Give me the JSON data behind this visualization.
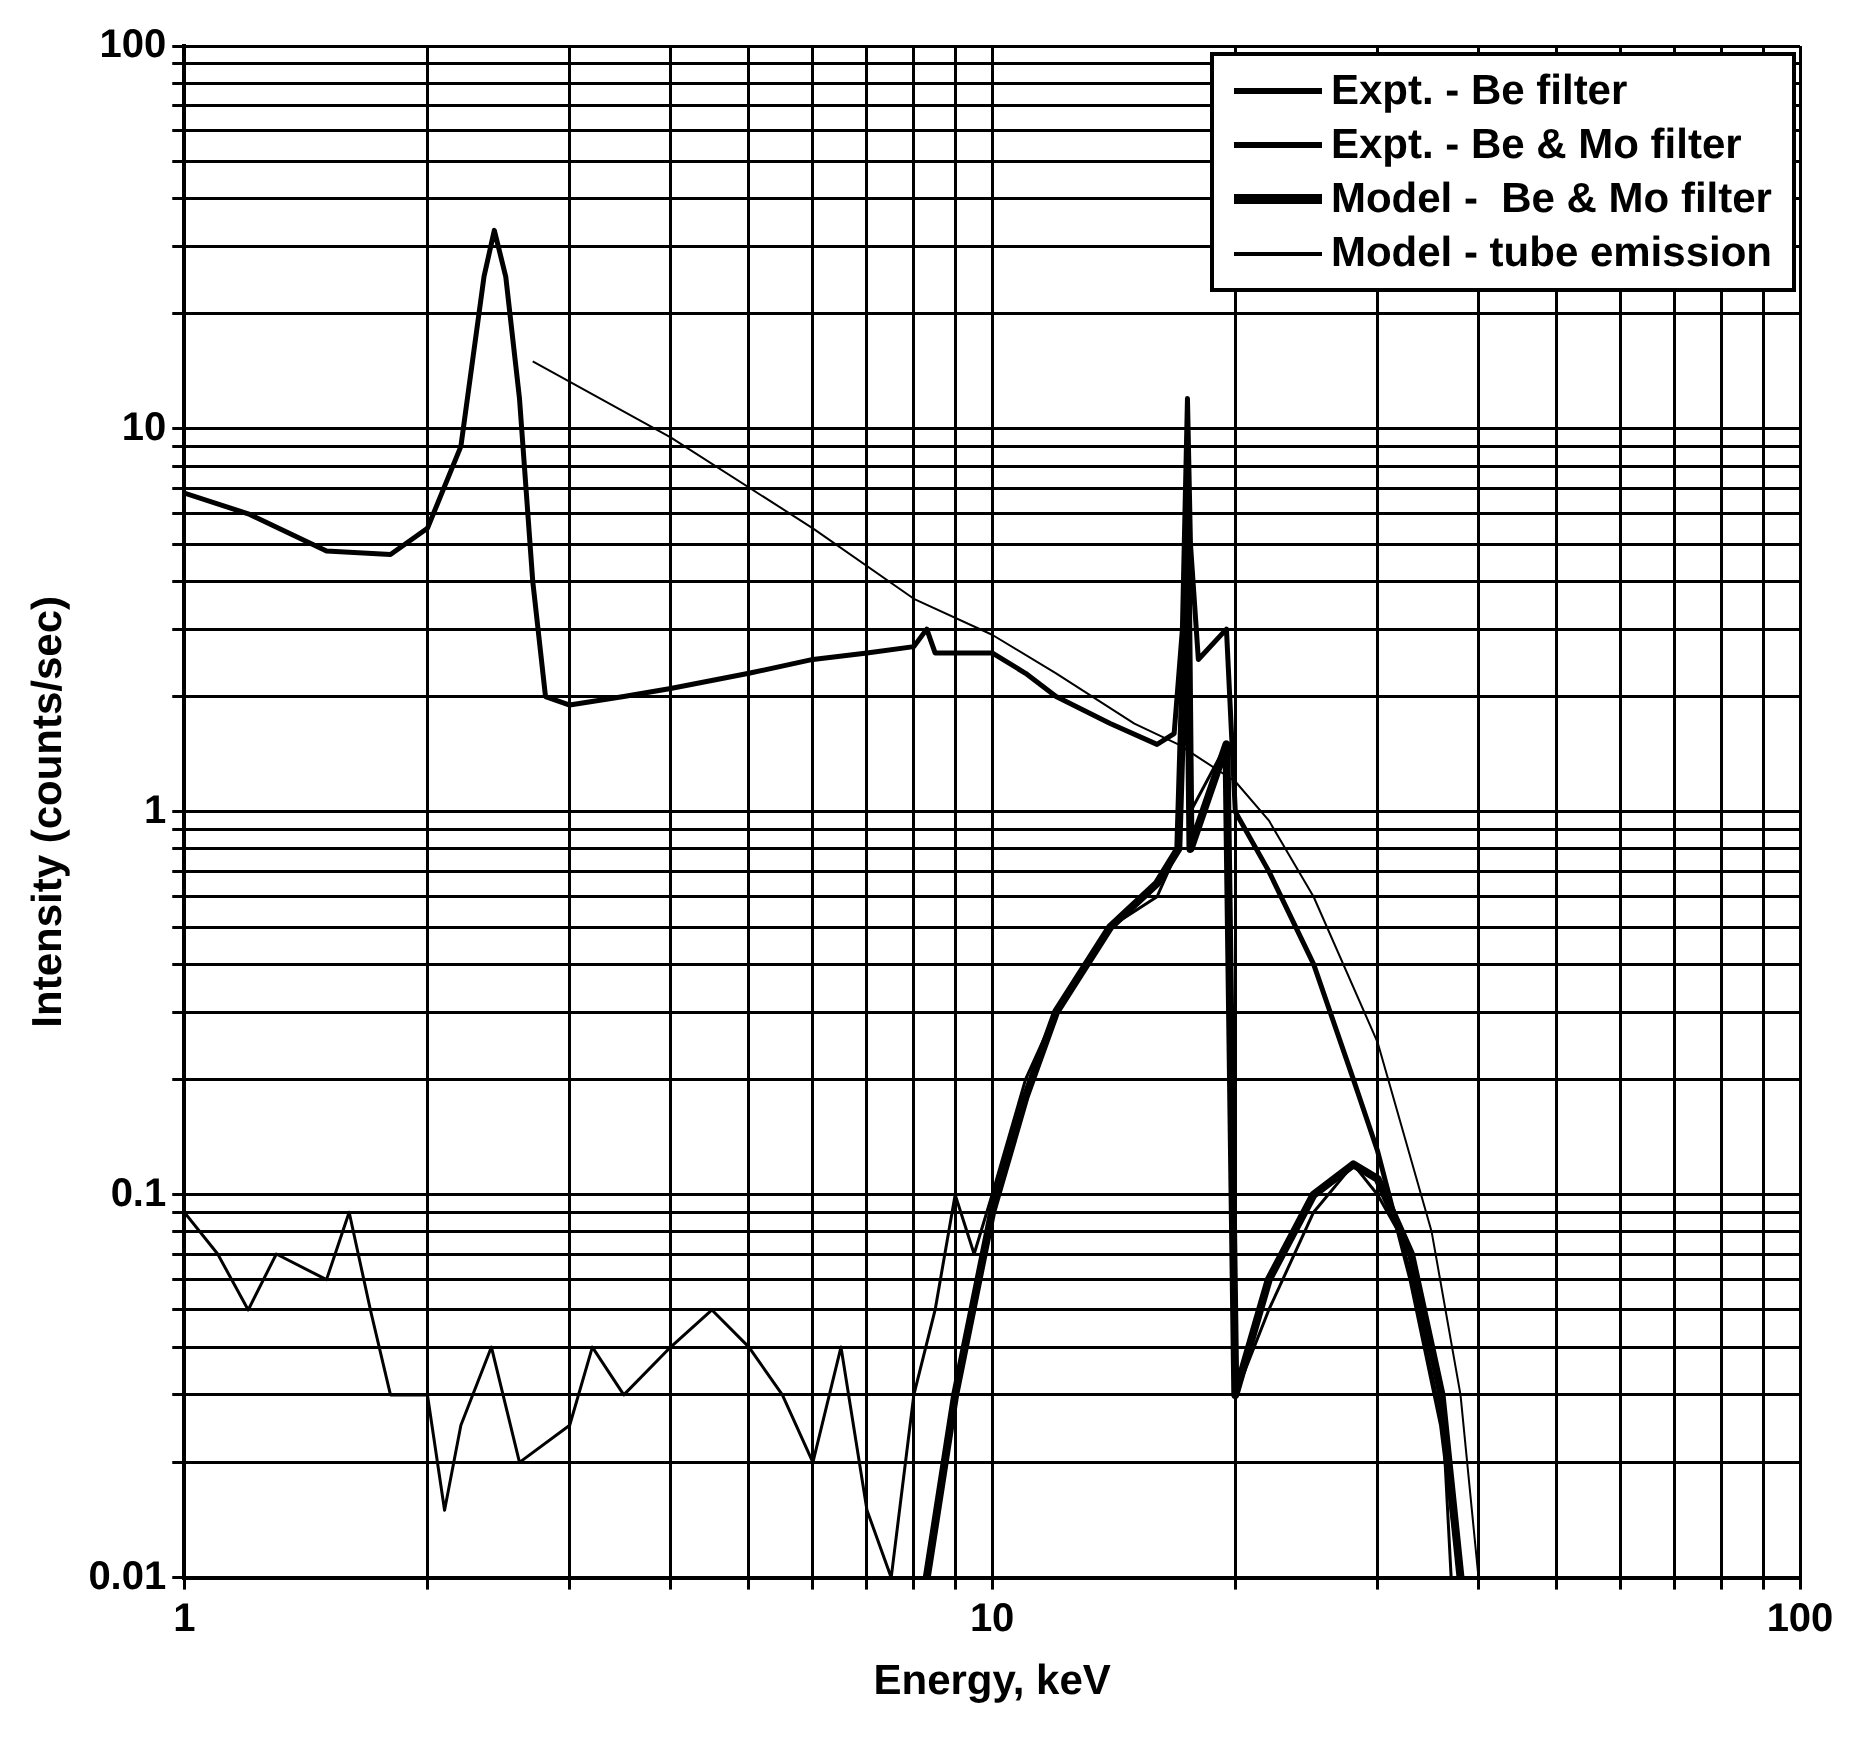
{
  "chart_data": {
    "type": "line",
    "xlabel": "Energy, keV",
    "ylabel": "Intensity (counts/sec)",
    "log": "xy",
    "grid": true,
    "legend": "top right",
    "marker": "none",
    "line_style": "solid",
    "xlim": [
      1,
      100
    ],
    "xticks": [
      1,
      10,
      100
    ],
    "ylim": [
      0.01,
      100
    ],
    "yticks": [
      0.01,
      0.1,
      1,
      10,
      100
    ],
    "series": [
      {
        "name": "Expt. - Be filter",
        "color": "#000000",
        "x": [
          1,
          1.2,
          1.5,
          1.8,
          2.0,
          2.2,
          2.35,
          2.42,
          2.5,
          2.6,
          2.7,
          2.8,
          3,
          3.5,
          4,
          5,
          6,
          7,
          8,
          8.3,
          8.5,
          10,
          11,
          12,
          14,
          16,
          16.8,
          17.2,
          17.45,
          17.6,
          18,
          19.5,
          20,
          22,
          25,
          28,
          30,
          33,
          36,
          38
        ],
        "values": [
          6.8,
          6,
          4.8,
          4.7,
          5.5,
          9,
          25,
          33,
          25,
          12,
          4,
          2.0,
          1.9,
          2.0,
          2.1,
          2.3,
          2.5,
          2.6,
          2.7,
          3.0,
          2.6,
          2.6,
          2.3,
          2.0,
          1.7,
          1.5,
          1.6,
          3,
          12,
          5,
          2.5,
          3,
          1.0,
          0.7,
          0.4,
          0.2,
          0.13,
          0.06,
          0.025,
          0.01
        ]
      },
      {
        "name": "Expt. - Be & Mo filter",
        "color": "#000000",
        "x": [
          1,
          1.1,
          1.2,
          1.3,
          1.5,
          1.6,
          1.7,
          1.8,
          2,
          2.1,
          2.2,
          2.4,
          2.6,
          3,
          3.2,
          3.5,
          4,
          4.5,
          5,
          5.5,
          6,
          6.5,
          7,
          7.5,
          8,
          8.5,
          9,
          9.5,
          10,
          11,
          12,
          14,
          16,
          17,
          17.45,
          17.6,
          19.5,
          20,
          22,
          25,
          28,
          30,
          33,
          36,
          37
        ],
        "values": [
          0.09,
          0.07,
          0.05,
          0.07,
          0.06,
          0.09,
          0.05,
          0.03,
          0.03,
          0.015,
          0.025,
          0.04,
          0.02,
          0.025,
          0.04,
          0.03,
          0.04,
          0.05,
          0.04,
          0.03,
          0.02,
          0.04,
          0.015,
          0.01,
          0.03,
          0.05,
          0.1,
          0.07,
          0.1,
          0.2,
          0.3,
          0.5,
          0.6,
          0.8,
          6,
          1,
          1.5,
          0.03,
          0.05,
          0.09,
          0.12,
          0.1,
          0.07,
          0.03,
          0.01
        ]
      },
      {
        "name": "Model -  Be & Mo filter",
        "color": "#000000",
        "x": [
          8.3,
          9,
          10,
          11,
          12,
          14,
          16,
          17,
          17.45,
          17.6,
          19.5,
          20,
          22,
          25,
          28,
          30,
          33,
          36,
          38
        ],
        "values": [
          0.01,
          0.03,
          0.09,
          0.18,
          0.3,
          0.5,
          0.65,
          0.8,
          5,
          0.8,
          1.5,
          0.03,
          0.06,
          0.1,
          0.12,
          0.11,
          0.07,
          0.03,
          0.01
        ]
      },
      {
        "name": "Model - tube emission",
        "color": "#000000",
        "x": [
          2.7,
          4,
          6,
          8,
          10,
          12,
          15,
          17,
          20,
          22,
          25,
          30,
          35,
          38,
          40
        ],
        "values": [
          15,
          9.5,
          5.5,
          3.6,
          2.9,
          2.3,
          1.7,
          1.5,
          1.2,
          0.95,
          0.6,
          0.25,
          0.08,
          0.03,
          0.01
        ]
      }
    ]
  }
}
